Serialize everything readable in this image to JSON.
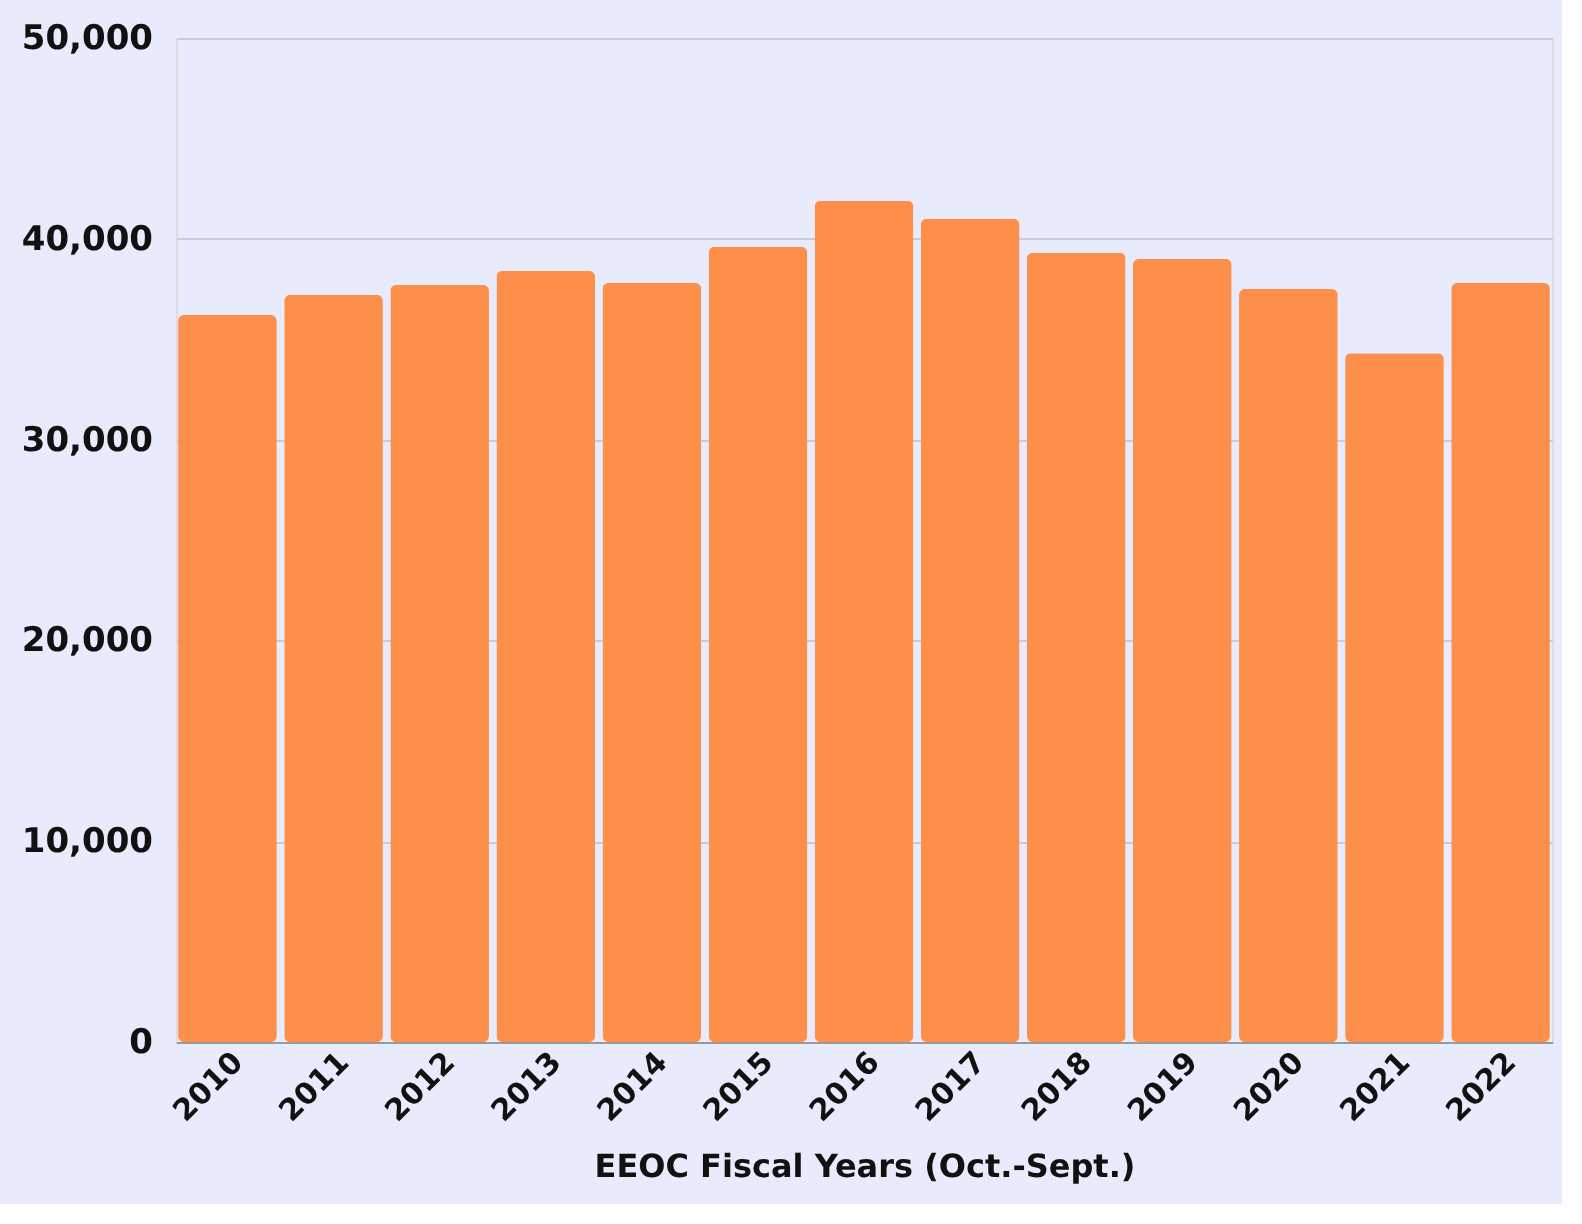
{
  "chart_data": {
    "type": "bar",
    "xlabel": "EEOC Fiscal Years (Oct.-Sept.)",
    "categories": [
      "2010",
      "2011",
      "2012",
      "2013",
      "2014",
      "2015",
      "2016",
      "2017",
      "2018",
      "2019",
      "2020",
      "2021",
      "2022"
    ],
    "values": [
      36200,
      37200,
      37700,
      38400,
      37800,
      39600,
      41900,
      41000,
      39300,
      39000,
      37500,
      34300,
      37800
    ],
    "color": "#fd8f4a",
    "ylim": [
      0,
      50000
    ],
    "yticks": [
      0,
      {
        "value": 10000,
        "label": "10,000"
      },
      {
        "value": 20000,
        "label": "20,000"
      },
      {
        "value": 30000,
        "label": "30,000"
      },
      {
        "value": 40000,
        "label": "40,000"
      },
      {
        "value": 50000,
        "label": "50,000"
      }
    ],
    "grid": "y"
  }
}
